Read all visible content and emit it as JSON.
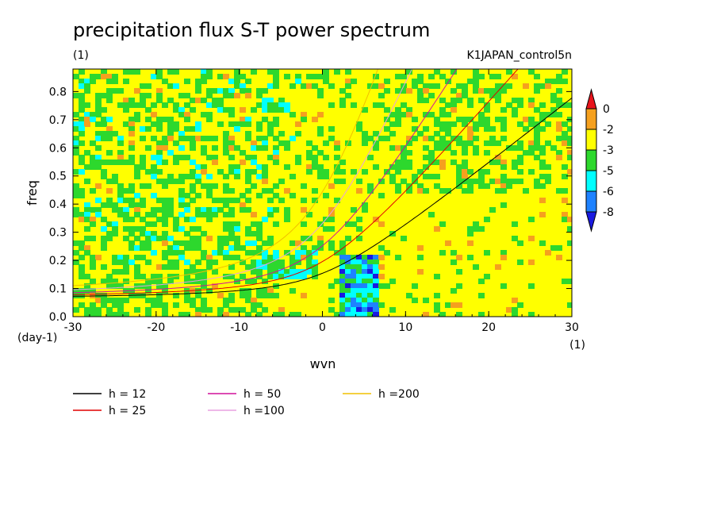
{
  "chart_data": {
    "type": "heatmap",
    "title": "precipitation flux S-T power spectrum",
    "subtitle_left": "(1)",
    "subtitle_right": "K1JAPAN_control5n",
    "xlabel": "wvn",
    "ylabel": "freq",
    "x_unit": "(1)",
    "y_unit": "(day-1)",
    "xlim": [
      -30,
      30
    ],
    "ylim": [
      0,
      0.88
    ],
    "x_ticks": [
      -30,
      -20,
      -10,
      0,
      10,
      20,
      30
    ],
    "x_tick_labels": [
      "-30",
      "-20",
      "-10",
      "0",
      "10",
      "20",
      "30"
    ],
    "y_ticks": [
      0.0,
      0.1,
      0.2,
      0.3,
      0.4,
      0.5,
      0.6,
      0.7,
      0.8
    ],
    "y_tick_labels": [
      "0.0",
      "0.1",
      "0.2",
      "0.3",
      "0.4",
      "0.5",
      "0.6",
      "0.7",
      "0.8"
    ],
    "colorbar": {
      "levels": [
        "0",
        "-2",
        "-3",
        "-5",
        "-6",
        "-8"
      ],
      "colors": [
        "#e8141c",
        "#f5a01e",
        "#ffff00",
        "#2dd82d",
        "#00ffff",
        "#1e82ff",
        "#1a1ae0"
      ]
    },
    "background_level_color": "#ffff00",
    "dispersion_curves": [
      {
        "name": "h = 12",
        "h": 12,
        "color": "#000000"
      },
      {
        "name": "h = 25",
        "h": 25,
        "color": "#e00000"
      },
      {
        "name": "h = 50",
        "h": 50,
        "color": "#d0109a"
      },
      {
        "name": "h =100",
        "h": 100,
        "color": "#e8a0e0"
      },
      {
        "name": "h =200",
        "h": 200,
        "color": "#f0c000"
      }
    ],
    "notable_regions": [
      {
        "level": "-5 to -8",
        "x_range": [
          2,
          6
        ],
        "y_range": [
          0.0,
          0.22
        ]
      },
      {
        "level": "-5 to -6",
        "x_range": [
          -30,
          -5
        ],
        "y_range": [
          0.15,
          0.88
        ]
      }
    ]
  }
}
